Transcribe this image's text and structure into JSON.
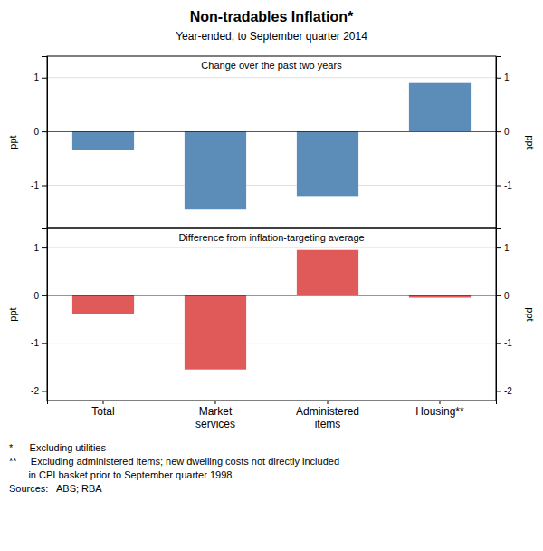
{
  "chart_data": [
    {
      "type": "bar",
      "title": "Non-tradables Inflation*",
      "subtitle": "Year-ended, to September quarter 2014",
      "annotations": [
        "Change over the past two years"
      ],
      "categories": [
        "Total",
        "Market\nservices",
        "Administered\nitems",
        "Housing**"
      ],
      "values": [
        -0.35,
        -1.45,
        -1.2,
        0.9
      ],
      "color": "#5B8DB8",
      "ylim": [
        -1.8,
        1.4
      ],
      "yticks": [
        -1,
        0,
        1
      ],
      "ylabel": "ppt",
      "grid": true,
      "tick_labels": "y"
    },
    {
      "type": "bar",
      "annotations": [
        "Difference from inflation-targeting average",
        "*      Excluding utilities",
        "**     Excluding administered items; new dwelling costs not directly included\n       in CPI basket prior to September quarter 1998",
        "Sources:   ABS; RBA"
      ],
      "categories": [
        "Total",
        "Market\nservices",
        "Administered\nitems",
        "Housing**"
      ],
      "values": [
        -0.4,
        -1.55,
        0.95,
        -0.05
      ],
      "color": "#E05A5A",
      "ylim": [
        -2.2,
        1.4
      ],
      "yticks": [
        -2,
        -1,
        0,
        1
      ],
      "ylabel": "ppt",
      "grid": true
    }
  ]
}
